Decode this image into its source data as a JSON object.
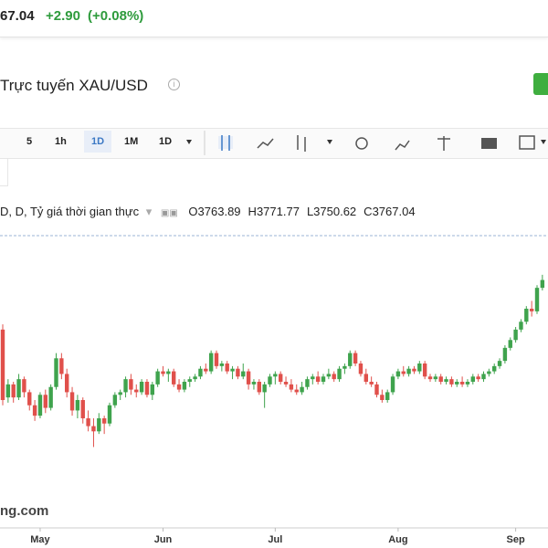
{
  "header": {
    "price": "67.04",
    "change": "+2.90",
    "change_pct": "(+0.08%)",
    "title": "Trực tuyến XAU/USD"
  },
  "toolbar": {
    "intervals": [
      "5",
      "1h",
      "1D",
      "1M",
      "1D"
    ]
  },
  "legend": {
    "symbol": "D, D, Tỷ giá thời gian thực",
    "ohlc": [
      {
        "label": "O",
        "value": 3763.89
      },
      {
        "label": "H",
        "value": 3771.77
      },
      {
        "label": "L",
        "value": 3750.62
      },
      {
        "label": "C",
        "value": 3767.04
      }
    ]
  },
  "watermark": "ng.com",
  "chart_data": {
    "type": "candlestick",
    "up_color": "#3fa34d",
    "down_color": "#e0504b",
    "ylim": [
      2830,
      3950
    ],
    "categories": [
      null,
      null,
      null,
      null,
      null,
      null,
      null,
      "May",
      null,
      null,
      null,
      null,
      null,
      null,
      null,
      null,
      null,
      null,
      null,
      null,
      null,
      null,
      null,
      null,
      null,
      null,
      null,
      null,
      null,
      null,
      "Jun",
      null,
      null,
      null,
      null,
      null,
      null,
      null,
      null,
      null,
      null,
      null,
      null,
      null,
      null,
      null,
      null,
      null,
      null,
      null,
      null,
      "Jul",
      null,
      null,
      null,
      null,
      null,
      null,
      null,
      null,
      null,
      null,
      null,
      null,
      null,
      null,
      null,
      null,
      null,
      null,
      null,
      null,
      null,
      null,
      "Aug",
      null,
      null,
      null,
      null,
      null,
      null,
      null,
      null,
      null,
      null,
      null,
      null,
      null,
      null,
      null,
      null,
      null,
      null,
      null,
      null,
      null,
      "Sep",
      null,
      null,
      null,
      null,
      null
    ],
    "candles": [
      [
        3590,
        3610,
        3300,
        3320
      ],
      [
        3330,
        3400,
        3310,
        3380
      ],
      [
        3380,
        3390,
        3310,
        3330
      ],
      [
        3330,
        3420,
        3320,
        3400
      ],
      [
        3400,
        3410,
        3330,
        3350
      ],
      [
        3350,
        3360,
        3280,
        3300
      ],
      [
        3300,
        3320,
        3240,
        3260
      ],
      [
        3260,
        3350,
        3250,
        3340
      ],
      [
        3340,
        3360,
        3270,
        3290
      ],
      [
        3290,
        3380,
        3280,
        3370
      ],
      [
        3370,
        3500,
        3360,
        3480
      ],
      [
        3480,
        3500,
        3400,
        3420
      ],
      [
        3420,
        3440,
        3330,
        3350
      ],
      [
        3350,
        3370,
        3260,
        3280
      ],
      [
        3280,
        3340,
        3250,
        3320
      ],
      [
        3320,
        3330,
        3230,
        3250
      ],
      [
        3250,
        3280,
        3200,
        3220
      ],
      [
        3220,
        3250,
        3140,
        3200
      ],
      [
        3200,
        3270,
        3190,
        3250
      ],
      [
        3250,
        3260,
        3190,
        3230
      ],
      [
        3230,
        3310,
        3220,
        3300
      ],
      [
        3300,
        3350,
        3290,
        3340
      ],
      [
        3340,
        3360,
        3320,
        3350
      ],
      [
        3350,
        3410,
        3330,
        3400
      ],
      [
        3400,
        3420,
        3340,
        3360
      ],
      [
        3360,
        3380,
        3330,
        3350
      ],
      [
        3350,
        3400,
        3340,
        3390
      ],
      [
        3390,
        3400,
        3330,
        3340
      ],
      [
        3340,
        3390,
        3320,
        3380
      ],
      [
        3380,
        3440,
        3370,
        3430
      ],
      [
        3430,
        3450,
        3410,
        3420
      ],
      [
        3420,
        3440,
        3390,
        3430
      ],
      [
        3430,
        3440,
        3370,
        3380
      ],
      [
        3380,
        3400,
        3350,
        3360
      ],
      [
        3360,
        3400,
        3350,
        3390
      ],
      [
        3390,
        3410,
        3370,
        3400
      ],
      [
        3400,
        3420,
        3390,
        3410
      ],
      [
        3410,
        3450,
        3400,
        3440
      ],
      [
        3440,
        3460,
        3420,
        3430
      ],
      [
        3430,
        3510,
        3420,
        3500
      ],
      [
        3500,
        3510,
        3440,
        3450
      ],
      [
        3450,
        3470,
        3430,
        3460
      ],
      [
        3460,
        3470,
        3420,
        3430
      ],
      [
        3430,
        3450,
        3400,
        3440
      ],
      [
        3440,
        3450,
        3400,
        3410
      ],
      [
        3410,
        3460,
        3400,
        3430
      ],
      [
        3430,
        3440,
        3360,
        3380
      ],
      [
        3380,
        3400,
        3360,
        3390
      ],
      [
        3390,
        3400,
        3340,
        3350
      ],
      [
        3350,
        3390,
        3290,
        3380
      ],
      [
        3380,
        3420,
        3370,
        3410
      ],
      [
        3410,
        3430,
        3380,
        3420
      ],
      [
        3420,
        3430,
        3380,
        3390
      ],
      [
        3390,
        3410,
        3370,
        3380
      ],
      [
        3380,
        3400,
        3350,
        3360
      ],
      [
        3360,
        3380,
        3340,
        3350
      ],
      [
        3350,
        3390,
        3340,
        3370
      ],
      [
        3370,
        3410,
        3360,
        3400
      ],
      [
        3400,
        3420,
        3380,
        3410
      ],
      [
        3410,
        3430,
        3380,
        3390
      ],
      [
        3390,
        3420,
        3380,
        3410
      ],
      [
        3410,
        3440,
        3400,
        3420
      ],
      [
        3420,
        3430,
        3390,
        3400
      ],
      [
        3400,
        3450,
        3390,
        3440
      ],
      [
        3440,
        3460,
        3420,
        3450
      ],
      [
        3450,
        3510,
        3440,
        3500
      ],
      [
        3500,
        3510,
        3450,
        3460
      ],
      [
        3460,
        3470,
        3410,
        3420
      ],
      [
        3420,
        3440,
        3380,
        3390
      ],
      [
        3390,
        3410,
        3370,
        3380
      ],
      [
        3380,
        3390,
        3330,
        3340
      ],
      [
        3340,
        3360,
        3310,
        3320
      ],
      [
        3320,
        3360,
        3310,
        3350
      ],
      [
        3350,
        3420,
        3340,
        3410
      ],
      [
        3410,
        3440,
        3400,
        3430
      ],
      [
        3430,
        3450,
        3410,
        3420
      ],
      [
        3420,
        3450,
        3410,
        3440
      ],
      [
        3440,
        3450,
        3420,
        3430
      ],
      [
        3430,
        3470,
        3420,
        3460
      ],
      [
        3460,
        3470,
        3400,
        3410
      ],
      [
        3410,
        3420,
        3390,
        3400
      ],
      [
        3400,
        3420,
        3390,
        3410
      ],
      [
        3410,
        3420,
        3380,
        3390
      ],
      [
        3390,
        3410,
        3380,
        3400
      ],
      [
        3400,
        3410,
        3370,
        3380
      ],
      [
        3380,
        3400,
        3370,
        3390
      ],
      [
        3390,
        3410,
        3370,
        3380
      ],
      [
        3380,
        3400,
        3370,
        3390
      ],
      [
        3390,
        3420,
        3380,
        3410
      ],
      [
        3410,
        3420,
        3390,
        3400
      ],
      [
        3400,
        3430,
        3390,
        3420
      ],
      [
        3420,
        3440,
        3410,
        3430
      ],
      [
        3430,
        3460,
        3420,
        3450
      ],
      [
        3450,
        3480,
        3440,
        3470
      ],
      [
        3470,
        3530,
        3460,
        3520
      ],
      [
        3520,
        3560,
        3510,
        3550
      ],
      [
        3550,
        3600,
        3540,
        3590
      ],
      [
        3590,
        3630,
        3580,
        3620
      ],
      [
        3620,
        3680,
        3610,
        3670
      ],
      [
        3670,
        3700,
        3640,
        3660
      ],
      [
        3660,
        3760,
        3650,
        3750
      ],
      [
        3750,
        3800,
        3740,
        3780
      ]
    ]
  }
}
